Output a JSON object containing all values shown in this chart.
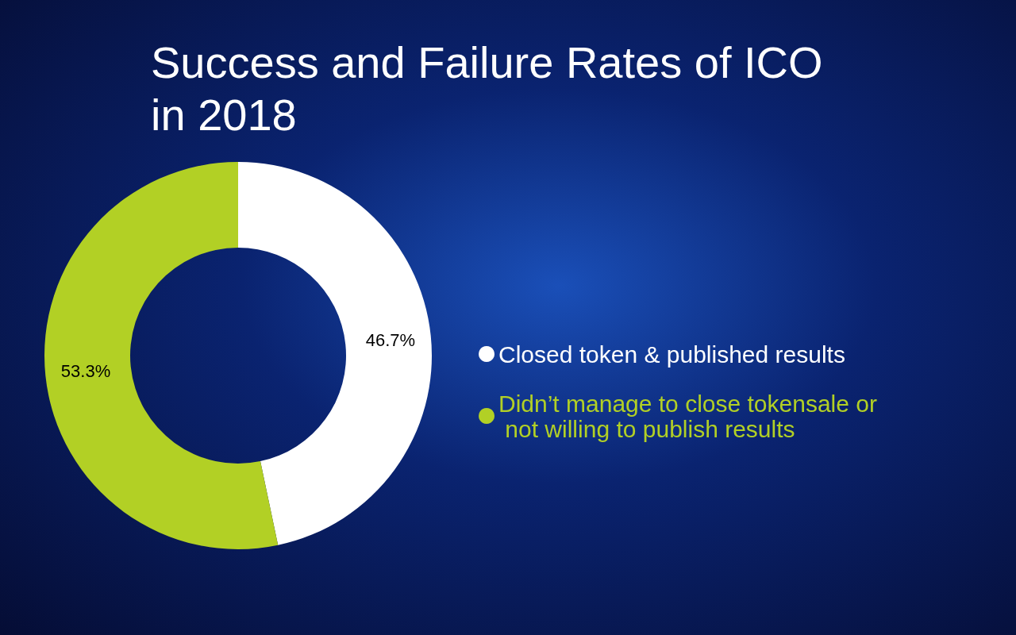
{
  "chart_data": {
    "type": "donut",
    "title": "Success and Failure Rates of ICO in 2018",
    "categories": [
      "Closed token & published results",
      "Didn’t manage to close tokensale or not willing to publish results"
    ],
    "values": [
      46.7,
      53.3
    ],
    "colors": [
      "#ffffff",
      "#b2d025"
    ],
    "value_labels": [
      "46.7%",
      "53.3%"
    ],
    "legend": "right"
  }
}
